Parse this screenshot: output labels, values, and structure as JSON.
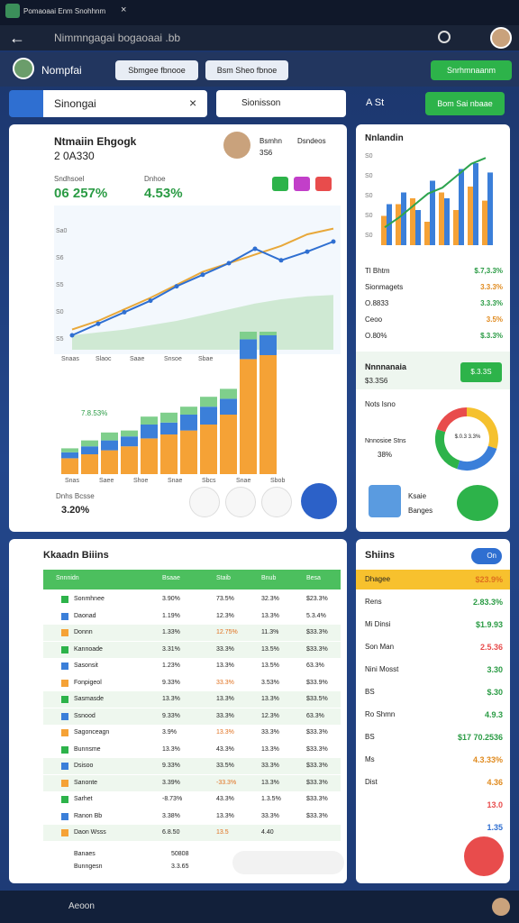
{
  "window": {
    "title": "Pomaoaai Enm Snohhnm"
  },
  "toolbar": {
    "url": "Nimmngagai bogaoaai .bb"
  },
  "header": {
    "user": "Nompfai",
    "buttons": [
      "Sbmgee fbnooe",
      "Bsm Sheo fbnoe"
    ],
    "action": "Snrhmnaanm"
  },
  "search": {
    "query": "Sinongai",
    "filter": "Sionisson",
    "sort": "A St",
    "action": "Bom Sai nbaae"
  },
  "main": {
    "title": "Ntmaiin Ehgogk",
    "subtitle": "2 0A330",
    "user": "Bsmhn",
    "user_sub": "3S6",
    "tag": "Dsndeos",
    "stats": [
      {
        "label": "Sndhsoel",
        "value": "06 257%"
      },
      {
        "label": "Dnhoe",
        "value": "4.53%"
      }
    ],
    "line_ylabels": [
      "Sa0",
      "S6",
      "S5",
      "S0",
      "S5"
    ],
    "line_xlabels": [
      "Snaas",
      "Slaoc",
      "Saae",
      "Snsoe",
      "Sbae"
    ],
    "line": [
      10,
      18,
      26,
      34,
      44,
      52,
      60,
      70,
      62,
      68,
      75
    ],
    "trend": [
      14,
      20,
      28,
      36,
      45,
      54,
      60,
      66,
      72,
      80,
      84
    ],
    "area": [
      10,
      12,
      14,
      17,
      20,
      24,
      28,
      32,
      35,
      37,
      38
    ],
    "bars_orange": [
      8,
      10,
      12,
      14,
      18,
      20,
      22,
      25,
      30,
      58,
      60
    ],
    "bars_blue": [
      3,
      4,
      5,
      5,
      7,
      6,
      8,
      9,
      8,
      10,
      10
    ],
    "bars_green": [
      2,
      3,
      4,
      3,
      4,
      5,
      4,
      5,
      5,
      6,
      5
    ],
    "bar_label": "7.8.53%",
    "bar_xlabels": [
      "Snas",
      "Saee",
      "Shoe",
      "Snae",
      "Sbcs",
      "Snae",
      "Sbob"
    ],
    "footer": {
      "label": "Dnhs Bcsse",
      "value": "3.20%"
    }
  },
  "side": {
    "title": "Nnlandin",
    "ylabels": [
      "S0",
      "S0",
      "S0",
      "S0",
      "S0"
    ],
    "orange": [
      25,
      35,
      40,
      20,
      45,
      30,
      50,
      38
    ],
    "blue": [
      35,
      45,
      30,
      55,
      40,
      65,
      70,
      62
    ],
    "trend": [
      18,
      28,
      40,
      52,
      58,
      70,
      82,
      88
    ],
    "rows": [
      [
        "Tl Bhtm",
        "$.7,3.3%"
      ],
      [
        "Sionmagets",
        "3.3.3%"
      ],
      [
        "O.8833",
        "3.3.3%"
      ],
      [
        "Ceoo",
        "3.5%"
      ],
      [
        "O.80%",
        "$.3.3%"
      ]
    ],
    "promo": {
      "title": "Nnnnanaia",
      "value": "$3.3S6",
      "button": "$.3.3S"
    },
    "donut": {
      "title": "Nots Isno",
      "label": "Nnnosioe Stns",
      "pct": "38%",
      "values": [
        30,
        25,
        25,
        20
      ],
      "center": "$.0.3 3.3%"
    },
    "footer": [
      "Ksaie",
      "Banges"
    ]
  },
  "table": {
    "title": "Kkaadn Biiins",
    "header": [
      "Snnnidn",
      "Bsaae",
      "Staib",
      "Bnub",
      "Besa"
    ],
    "rows": [
      [
        "Sonmhnee",
        "3.90%",
        "73.5%",
        "32.3%",
        "$23.3%"
      ],
      [
        "Daonad",
        "1.19%",
        "12.3%",
        "13.3%",
        "5.3.4%"
      ],
      [
        "Donnn",
        "1.33%",
        "12.75%",
        "11.3%",
        "$33.3%"
      ],
      [
        "Kannoade",
        "3.31%",
        "33.3%",
        "13.5%",
        "$33.3%"
      ],
      [
        "Sasonsit",
        "1.23%",
        "13.3%",
        "13.5%",
        "63.3%"
      ],
      [
        "Fonpigeol",
        "9.33%",
        "33.3%",
        "3.53%",
        "$33.9%"
      ],
      [
        "Sasmasde",
        "13.3%",
        "13.3%",
        "13.3%",
        "$33.5%"
      ],
      [
        "Ssnood",
        "9.33%",
        "33.3%",
        "12.3%",
        "63.3%"
      ],
      [
        "Sagonceagn",
        "3.9%",
        "13.3%",
        "33.3%",
        "$33.3%"
      ],
      [
        "Bunnsme",
        "13.3%",
        "43.3%",
        "13.3%",
        "$33.3%"
      ],
      [
        "Dsisoo",
        "9.33%",
        "33.5%",
        "33.3%",
        "$33.3%"
      ],
      [
        "Sanonte",
        "3.39%",
        "-33.3%",
        "13.3%",
        "$33.3%"
      ],
      [
        "Sarhet",
        "-8.73%",
        "43.3%",
        "1.3.5%",
        "$33.3%"
      ],
      [
        "Ranon Bb",
        "3.38%",
        "13.3%",
        "33.3%",
        "$33.3%"
      ],
      [
        "Daon Wsss",
        "6.8.50",
        "13.5",
        "4.40",
        ""
      ]
    ],
    "footer": [
      [
        "Banaes",
        "50808"
      ],
      [
        "Bunngesn",
        "3.3.65"
      ]
    ]
  },
  "list": {
    "title": "Shiins",
    "toggle": "On",
    "rows": [
      [
        "Dhagee",
        "$23.9%"
      ],
      [
        "Rens",
        "2.83.3%"
      ],
      [
        "Mi Dinsi",
        "$1.9.93"
      ],
      [
        "Son Man",
        "2.5.36"
      ],
      [
        "Nini Mosst",
        "3.30"
      ],
      [
        "BS",
        "$.30"
      ],
      [
        "Ro Shmn",
        "4.9.3"
      ],
      [
        "BS",
        "$17 70.2536"
      ],
      [
        "Ms",
        "4.3.33%"
      ],
      [
        "Dist",
        "4.36"
      ],
      [
        "",
        "13.0"
      ],
      [
        "",
        "1.35"
      ]
    ]
  },
  "bottom": {
    "label": "Aeoon"
  }
}
